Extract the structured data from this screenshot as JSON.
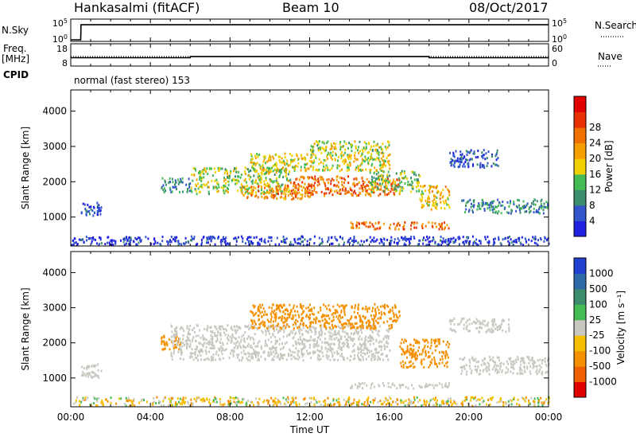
{
  "header": {
    "radar": "Hankasalmi (fitACF)",
    "beam": "Beam 10",
    "date": "08/Oct/2017"
  },
  "strip_labels": {
    "nsky": "N.Sky",
    "nsearch": "N.Search",
    "freq": "Freq.",
    "freq_unit": "[MHz]",
    "nave": "Nave",
    "cpid": "CPID",
    "mode": "normal (fast stereo) 153"
  },
  "colors": {
    "power": [
      "#2020e0",
      "#3355cc",
      "#3c8c6e",
      "#44bb55",
      "#f0d000",
      "#f5a000",
      "#f07000",
      "#e83000",
      "#e00000"
    ],
    "velocity": [
      "#2040d0",
      "#2e6aa8",
      "#3c8c6e",
      "#44bb55",
      "#c8c8c0",
      "#f5c000",
      "#f59000",
      "#f06000",
      "#e00000"
    ],
    "ground_scatter": "#c8c8c0"
  },
  "chart_data": [
    {
      "type": "line",
      "panel": "N.Sky / N.Search",
      "y_ticks_left": [
        "10^5",
        "10^0"
      ],
      "y_ticks_right": [
        "10^5",
        "10^0"
      ],
      "series": [
        {
          "name": "N.Sky",
          "style": "solid",
          "x": [
            "00:00",
            "00:30",
            "00:31",
            "24:00"
          ],
          "y": [
            0,
            0,
            4.3,
            4.3
          ]
        },
        {
          "name": "N.Search",
          "style": "dotted",
          "x": [],
          "y": []
        }
      ]
    },
    {
      "type": "line",
      "panel": "Freq. / Nave",
      "y_ticks_left": [
        "18",
        "8"
      ],
      "y_ticks_right": [
        "60",
        "0"
      ],
      "series": [
        {
          "name": "Freq.",
          "style": "solid",
          "unit": "MHz",
          "x": [
            "00:00",
            "06:00",
            "06:00",
            "18:00",
            "18:00",
            "24:00"
          ],
          "y": [
            10.5,
            10.5,
            11.3,
            11.3,
            10.5,
            10.5
          ]
        },
        {
          "name": "Nave",
          "style": "dotted",
          "x": [
            "00:00",
            "24:00"
          ],
          "y": [
            20,
            20
          ]
        }
      ]
    },
    {
      "type": "heatmap",
      "panel": "Power",
      "xlabel": "",
      "ylabel": "Slant Range [km]",
      "ylim": [
        180,
        4600
      ],
      "y_ticks": [
        1000,
        2000,
        3000,
        4000
      ],
      "colorbar_label": "Power [dB]",
      "colorbar_ticks": [
        4,
        8,
        12,
        16,
        20,
        24,
        28
      ],
      "regions": [
        {
          "t": [
            "00:30",
            "01:30"
          ],
          "range_km": [
            1000,
            1400
          ],
          "level_db": 5
        },
        {
          "t": [
            "00:00",
            "24:00"
          ],
          "range_km": [
            200,
            450
          ],
          "level_db": 4
        },
        {
          "t": [
            "04:30",
            "06:00"
          ],
          "range_km": [
            1700,
            2100
          ],
          "level_db": 10
        },
        {
          "t": [
            "06:00",
            "11:00"
          ],
          "range_km": [
            1650,
            2400
          ],
          "level_db": 16
        },
        {
          "t": [
            "08:30",
            "12:00"
          ],
          "range_km": [
            1500,
            1900
          ],
          "level_db": 24
        },
        {
          "t": [
            "11:00",
            "16:30"
          ],
          "range_km": [
            1600,
            2150
          ],
          "level_db": 26
        },
        {
          "t": [
            "09:00",
            "16:00"
          ],
          "range_km": [
            2300,
            2800
          ],
          "level_db": 18
        },
        {
          "t": [
            "12:00",
            "16:00"
          ],
          "range_km": [
            2800,
            3150
          ],
          "level_db": 16
        },
        {
          "t": [
            "15:00",
            "17:30"
          ],
          "range_km": [
            1700,
            2300
          ],
          "level_db": 14
        },
        {
          "t": [
            "17:30",
            "19:00"
          ],
          "range_km": [
            1200,
            1900
          ],
          "level_db": 20
        },
        {
          "t": [
            "14:00",
            "19:00"
          ],
          "range_km": [
            650,
            850
          ],
          "level_db": 26
        },
        {
          "t": [
            "19:30",
            "24:00"
          ],
          "range_km": [
            1100,
            1500
          ],
          "level_db": 10
        },
        {
          "t": [
            "19:00",
            "21:30"
          ],
          "range_km": [
            2400,
            2900
          ],
          "level_db": 6
        }
      ]
    },
    {
      "type": "heatmap",
      "panel": "Velocity",
      "xlabel": "Time UT",
      "ylabel": "Slant Range [km]",
      "x_ticks": [
        "00:00",
        "04:00",
        "08:00",
        "12:00",
        "16:00",
        "20:00",
        "00:00"
      ],
      "ylim": [
        180,
        4600
      ],
      "y_ticks": [
        1000,
        2000,
        3000,
        4000
      ],
      "colorbar_label": "Velocity [m s^-1]",
      "colorbar_ticks": [
        1000,
        500,
        100,
        25,
        -25,
        -100,
        -500,
        -1000
      ],
      "regions": [
        {
          "t": [
            "00:30",
            "01:30"
          ],
          "range_km": [
            1000,
            1400
          ],
          "velocity_ms": 0,
          "ground_scatter": true
        },
        {
          "t": [
            "00:00",
            "24:00"
          ],
          "range_km": [
            200,
            450
          ],
          "velocity_ms": -50
        },
        {
          "t": [
            "04:30",
            "05:30"
          ],
          "range_km": [
            1800,
            2200
          ],
          "velocity_ms": -300
        },
        {
          "t": [
            "05:00",
            "16:00"
          ],
          "range_km": [
            1500,
            2500
          ],
          "velocity_ms": 0,
          "ground_scatter": true
        },
        {
          "t": [
            "09:00",
            "16:30"
          ],
          "range_km": [
            2400,
            3100
          ],
          "velocity_ms": -400
        },
        {
          "t": [
            "16:30",
            "19:00"
          ],
          "range_km": [
            1300,
            2100
          ],
          "velocity_ms": -300
        },
        {
          "t": [
            "14:00",
            "19:00"
          ],
          "range_km": [
            700,
            850
          ],
          "velocity_ms": 0,
          "ground_scatter": true
        },
        {
          "t": [
            "19:30",
            "24:00"
          ],
          "range_km": [
            1100,
            1600
          ],
          "velocity_ms": 0,
          "ground_scatter": true
        },
        {
          "t": [
            "19:00",
            "22:00"
          ],
          "range_km": [
            2300,
            2700
          ],
          "velocity_ms": 0,
          "ground_scatter": true
        }
      ]
    }
  ]
}
